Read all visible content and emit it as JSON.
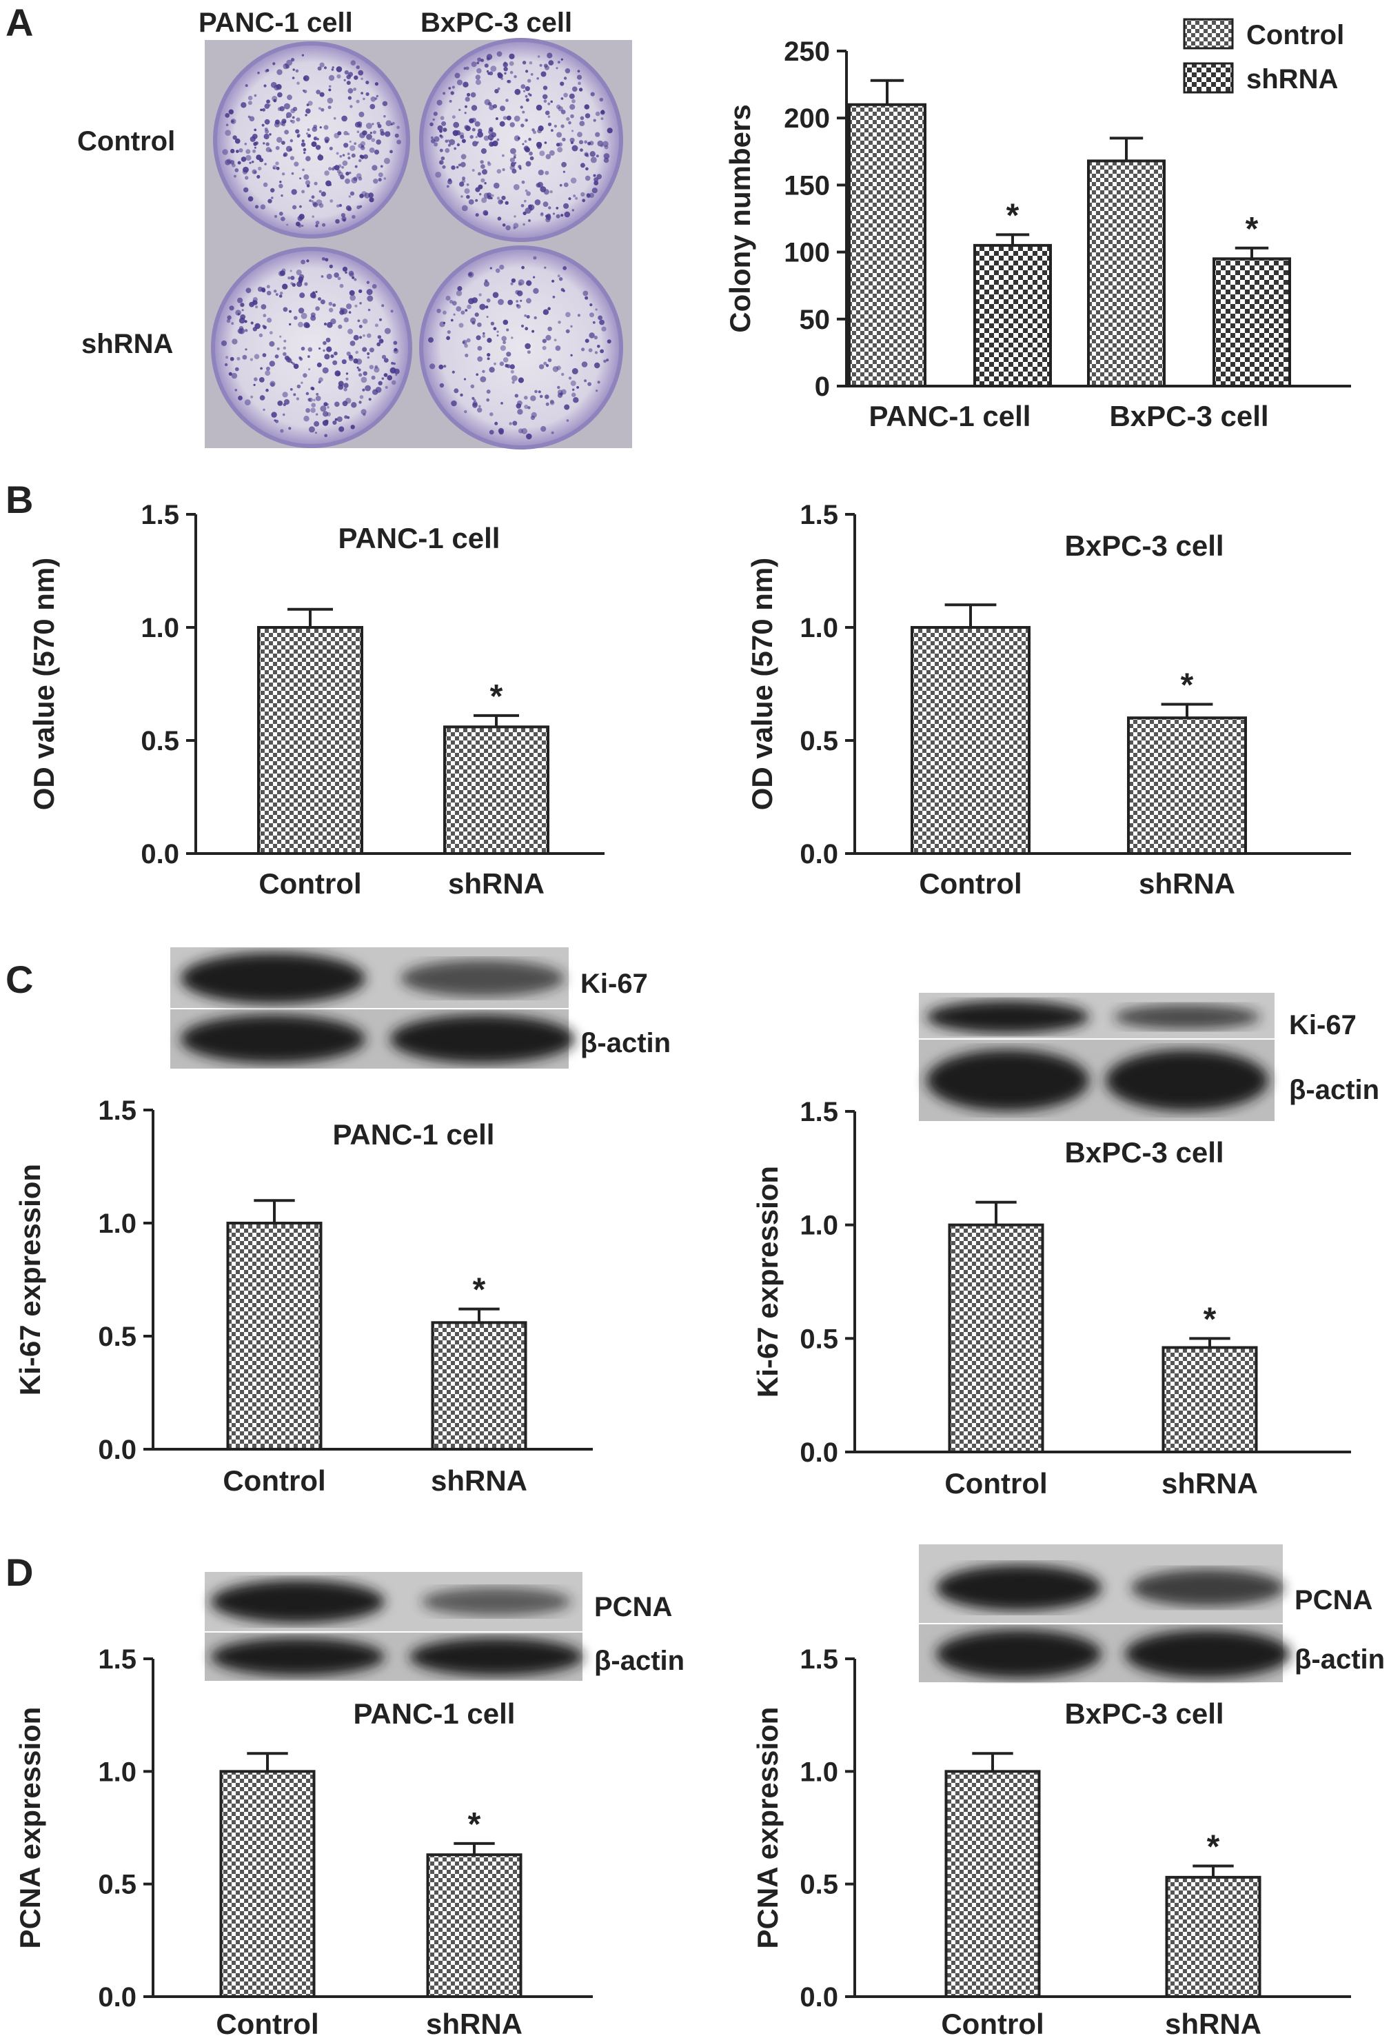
{
  "panel_letters": [
    "A",
    "B",
    "C",
    "D"
  ],
  "colony_photo": {
    "col_labels": [
      "PANC-1 cell",
      "BxPC-3 cell"
    ],
    "row_labels": [
      "Control",
      "shRNA"
    ],
    "dish_color": "#7d6fb0",
    "colony_color": "#4a3a8c"
  },
  "blots": [
    {
      "labels": [
        "Ki-67",
        "β-actin"
      ],
      "band_intensity": [
        [
          1.0,
          0.55
        ],
        [
          1.0,
          1.0
        ]
      ]
    },
    {
      "labels": [
        "Ki-67",
        "β-actin"
      ],
      "band_intensity": [
        [
          1.0,
          0.6
        ],
        [
          1.0,
          1.0
        ]
      ]
    },
    {
      "labels": [
        "PCNA",
        "β-actin"
      ],
      "band_intensity": [
        [
          1.0,
          0.45
        ],
        [
          1.0,
          1.0
        ]
      ]
    },
    {
      "labels": [
        "PCNA",
        "β-actin"
      ],
      "band_intensity": [
        [
          1.0,
          0.7
        ],
        [
          1.0,
          1.0
        ]
      ]
    }
  ],
  "colors": {
    "control_fill": "#8a8a8a",
    "shrna_fill": "#c8c8c8",
    "axis": "#222222",
    "blot_bg": "#bdbdbd",
    "band": "#1a1a1a"
  },
  "chart_data": [
    {
      "id": "A-right",
      "type": "bar",
      "title": "",
      "ylabel": "Colony numbers",
      "categories": [
        "PANC-1 cell",
        "BxPC-3 cell"
      ],
      "series": [
        {
          "name": "Control",
          "values": [
            210,
            168
          ],
          "errors": [
            18,
            17
          ],
          "significant": [
            false,
            false
          ]
        },
        {
          "name": "shRNA",
          "values": [
            105,
            95
          ],
          "errors": [
            8,
            8
          ],
          "significant": [
            true,
            true
          ]
        }
      ],
      "ylim": [
        0,
        250
      ],
      "yticks": [
        "0",
        "50",
        "100",
        "150",
        "200",
        "250"
      ],
      "legend": "top-right"
    },
    {
      "id": "B-left",
      "type": "bar",
      "title": "PANC-1 cell",
      "ylabel": "OD value (570 nm)",
      "categories": [
        "Control",
        "shRNA"
      ],
      "values": [
        1.0,
        0.56
      ],
      "errors": [
        0.08,
        0.05
      ],
      "significant": [
        false,
        true
      ],
      "ylim": [
        0,
        1.5
      ],
      "yticks": [
        "0.0",
        "0.5",
        "1.0",
        "1.5"
      ]
    },
    {
      "id": "B-right",
      "type": "bar",
      "title": "BxPC-3 cell",
      "ylabel": "OD value (570 nm)",
      "categories": [
        "Control",
        "shRNA"
      ],
      "values": [
        1.0,
        0.6
      ],
      "errors": [
        0.1,
        0.06
      ],
      "significant": [
        false,
        true
      ],
      "ylim": [
        0,
        1.5
      ],
      "yticks": [
        "0.0",
        "0.5",
        "1.0",
        "1.5"
      ]
    },
    {
      "id": "C-left",
      "type": "bar",
      "title": "PANC-1 cell",
      "ylabel": "Ki-67 expression",
      "categories": [
        "Control",
        "shRNA"
      ],
      "values": [
        1.0,
        0.56
      ],
      "errors": [
        0.1,
        0.06
      ],
      "significant": [
        false,
        true
      ],
      "ylim": [
        0,
        1.5
      ],
      "yticks": [
        "0.0",
        "0.5",
        "1.0",
        "1.5"
      ]
    },
    {
      "id": "C-right",
      "type": "bar",
      "title": "BxPC-3 cell",
      "ylabel": "Ki-67 expression",
      "categories": [
        "Control",
        "shRNA"
      ],
      "values": [
        1.0,
        0.46
      ],
      "errors": [
        0.1,
        0.04
      ],
      "significant": [
        false,
        true
      ],
      "ylim": [
        0,
        1.5
      ],
      "yticks": [
        "0.0",
        "0.5",
        "1.0",
        "1.5"
      ]
    },
    {
      "id": "D-left",
      "type": "bar",
      "title": "PANC-1 cell",
      "ylabel": "PCNA expression",
      "categories": [
        "Control",
        "shRNA"
      ],
      "values": [
        1.0,
        0.63
      ],
      "errors": [
        0.08,
        0.05
      ],
      "significant": [
        false,
        true
      ],
      "ylim": [
        0,
        1.5
      ],
      "yticks": [
        "0.0",
        "0.5",
        "1.0",
        "1.5"
      ]
    },
    {
      "id": "D-right",
      "type": "bar",
      "title": "BxPC-3 cell",
      "ylabel": "PCNA expression",
      "categories": [
        "Control",
        "shRNA"
      ],
      "values": [
        1.0,
        0.53
      ],
      "errors": [
        0.08,
        0.05
      ],
      "significant": [
        false,
        true
      ],
      "ylim": [
        0,
        1.5
      ],
      "yticks": [
        "0.0",
        "0.5",
        "1.0",
        "1.5"
      ]
    }
  ]
}
